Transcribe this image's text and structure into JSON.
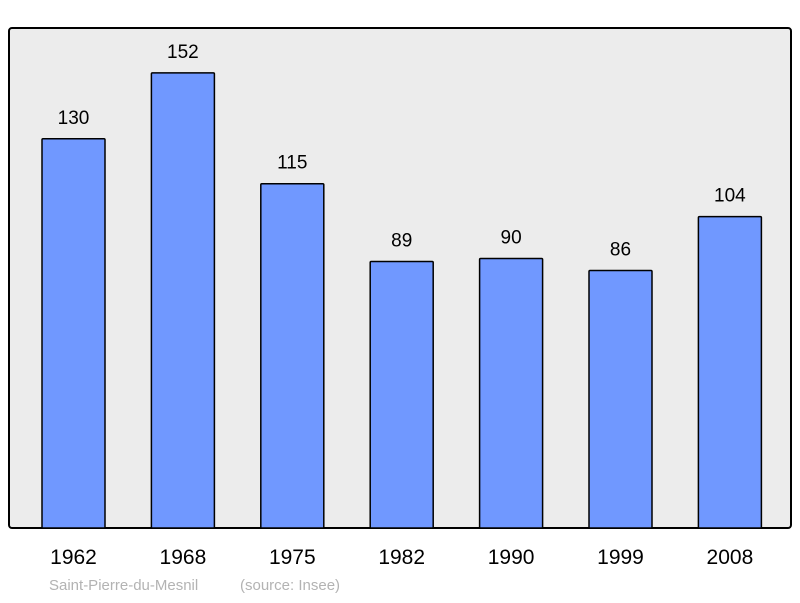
{
  "chart_data": {
    "type": "bar",
    "categories": [
      "1962",
      "1968",
      "1975",
      "1982",
      "1990",
      "1999",
      "2008"
    ],
    "values": [
      130,
      152,
      115,
      89,
      90,
      86,
      104
    ],
    "title": "",
    "xlabel": "",
    "ylabel": "",
    "ylim": [
      0,
      167
    ],
    "grid": false,
    "data_labels": true,
    "colors": {
      "bar": "#7098ff",
      "plot_background": "#ececec",
      "frame": "#000000",
      "footer": "#b3b3b3"
    }
  },
  "footer": {
    "place": "Saint-Pierre-du-Mesnil",
    "source": "(source: Insee)"
  }
}
